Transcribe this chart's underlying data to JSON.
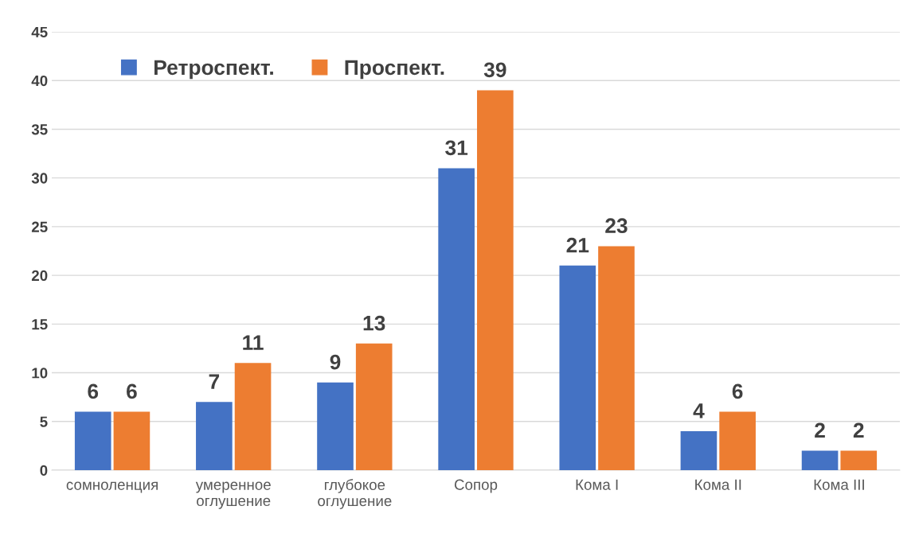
{
  "chart_data": {
    "type": "bar",
    "categories": [
      "сомноленция",
      "умеренное\nоглушение",
      "глубокое\nоглушение",
      "Сопор",
      "Кома I",
      "Кома II",
      "Кома III"
    ],
    "series": [
      {
        "name": "Ретроспект.",
        "color": "#4472c4",
        "values": [
          6,
          7,
          9,
          31,
          21,
          4,
          2
        ]
      },
      {
        "name": "Проспект.",
        "color": "#ed7d31",
        "values": [
          6,
          11,
          13,
          39,
          23,
          6,
          2
        ]
      }
    ],
    "ylim": [
      0,
      45
    ],
    "yticks": [
      0,
      5,
      10,
      15,
      20,
      25,
      30,
      35,
      40,
      45
    ],
    "grid": "y",
    "legend": "top left",
    "data_labels": true
  }
}
